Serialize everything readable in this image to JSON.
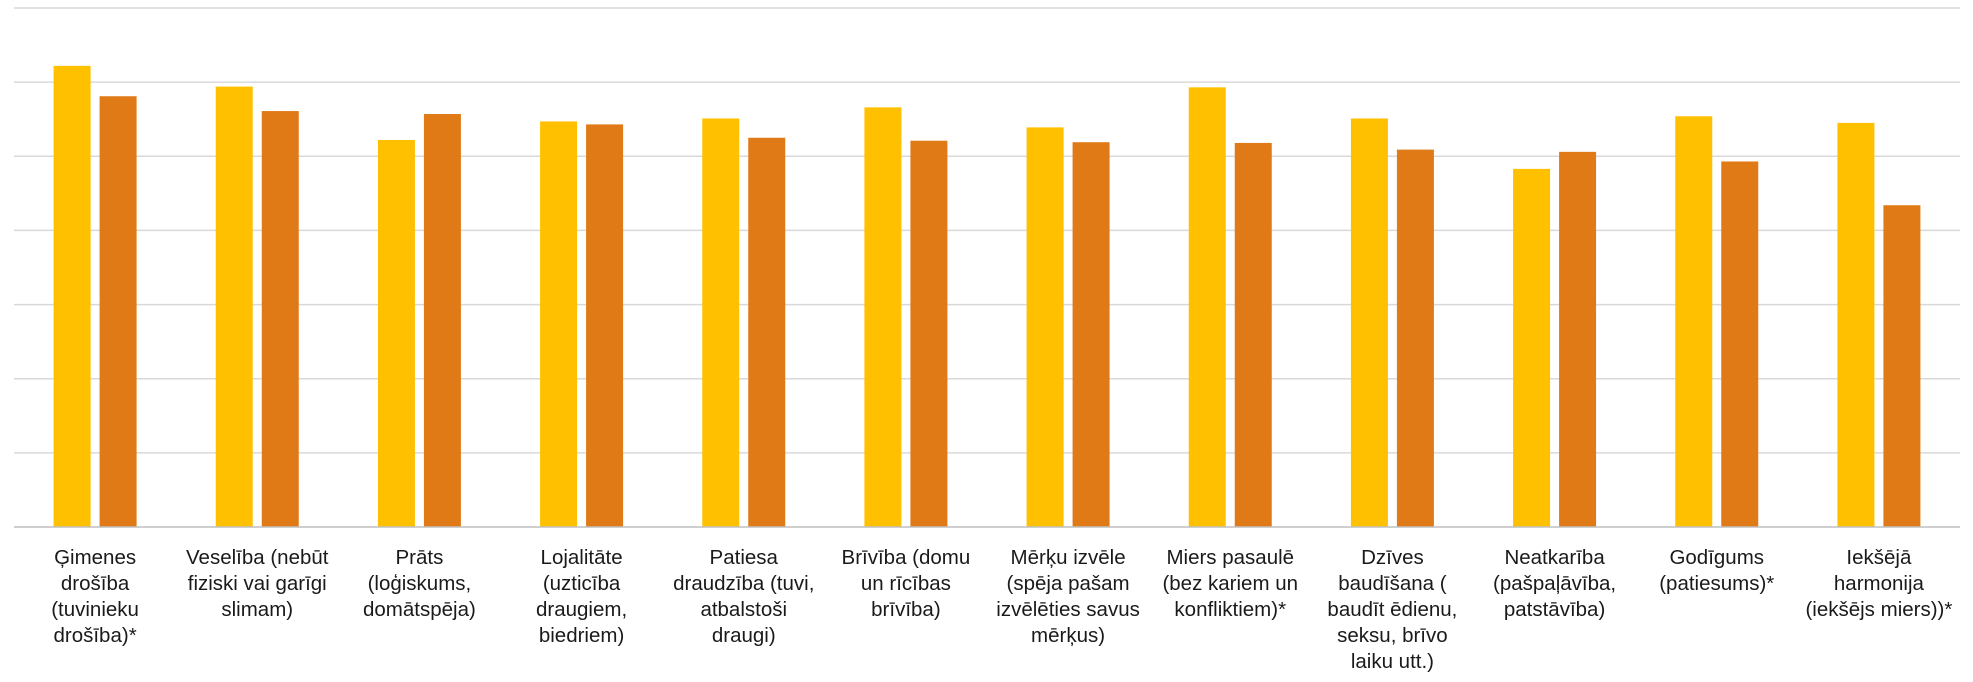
{
  "chart_data": {
    "type": "bar",
    "title": "",
    "xlabel": "",
    "ylabel": "",
    "ylim": [
      0,
      7
    ],
    "grid": true,
    "legend": "none",
    "colors": [
      "#FFC000",
      "#E07A16"
    ],
    "categories": [
      "Ģimenes drošība (tuvinieku drošība)*",
      "Veselība (nebūt fiziski vai garīgi slimam)",
      "Prāts (loģiskums, domātspēja)",
      "Lojalitāte (uzticība draugiem, biedriem)",
      "Patiesa draudzība (tuvi, atbalstoši draugi)",
      "Brīvība (domu un rīcības brīvība)",
      "Mērķu izvēle (spēja pašam izvēlēties savus mērķus)",
      "Miers pasaulē (bez kariem un konfliktiem)*",
      "Dzīves baudīšana ( baudīt ēdienu, seksu, brīvo laiku utt.)",
      "Neatkarība (pašpaļāvība, patstāvība)",
      "Godīgums (patiesums)*",
      "Iekšējā harmonija (iekšējs miers))*"
    ],
    "category_lines": [
      [
        "Ģimenes drošība",
        "(tuvinieku",
        "drošība)*"
      ],
      [
        "Veselība (nebūt",
        "fiziski vai garīgi",
        "slimam)"
      ],
      [
        "Prāts (loģiskums,",
        "domātspēja)"
      ],
      [
        "Lojalitāte",
        "(uzticība",
        "draugiem,",
        "biedriem)"
      ],
      [
        "Patiesa",
        "draudzība (tuvi,",
        "atbalstoši",
        "draugi)"
      ],
      [
        "Brīvība (domu",
        "un rīcības",
        "brīvība)"
      ],
      [
        "Mērķu izvēle",
        "(spēja pašam",
        "izvēlēties savus",
        "mērķus)"
      ],
      [
        "Miers pasaulē",
        "(bez kariem un",
        "konfliktiem)*"
      ],
      [
        "Dzīves",
        "baudīšana (",
        "baudīt ēdienu,",
        "seksu, brīvo",
        "laiku utt.)"
      ],
      [
        "Neatkarība",
        "(pašpaļāvība,",
        "patstāvība)"
      ],
      [
        "Godīgums",
        "(patiesums)*"
      ],
      [
        "Iekšējā",
        "harmonija",
        "(iekšējs miers))*"
      ]
    ],
    "series": [
      {
        "values": [
          6.22,
          5.94,
          5.22,
          5.47,
          5.51,
          5.66,
          5.39,
          5.93,
          5.51,
          4.83,
          5.54,
          5.45
        ]
      },
      {
        "values": [
          5.81,
          5.61,
          5.57,
          5.43,
          5.25,
          5.21,
          5.19,
          5.18,
          5.09,
          5.06,
          4.93,
          4.34
        ]
      }
    ]
  }
}
